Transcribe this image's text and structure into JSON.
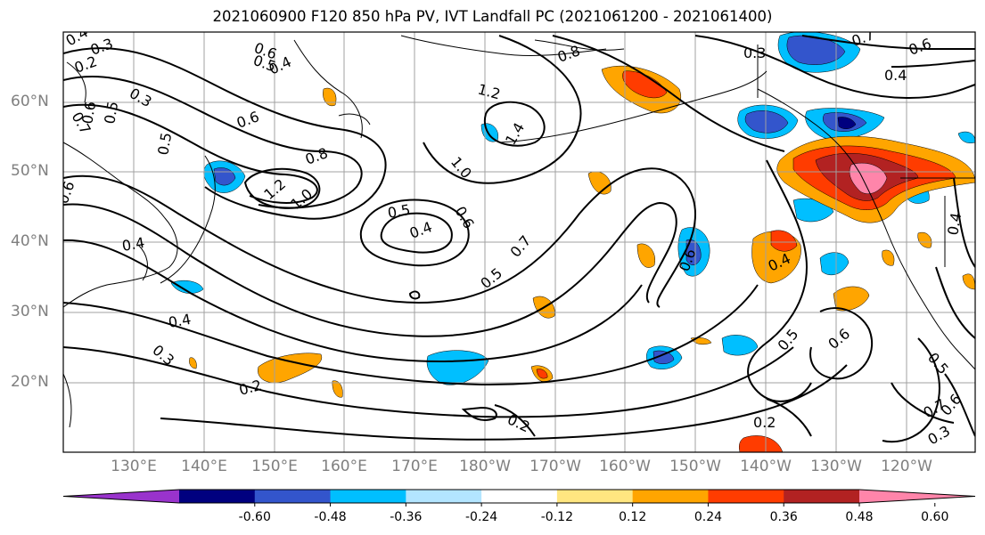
{
  "title": "2021060900 F120 850 hPa PV, IVT Landfall PC (2021061200 - 2021061400)",
  "lat_labels": [
    "60°N",
    "50°N",
    "40°N",
    "30°N",
    "20°N"
  ],
  "lon_labels": [
    "130°E",
    "140°E",
    "150°E",
    "160°E",
    "170°E",
    "180°W",
    "170°W",
    "160°W",
    "150°W",
    "140°W",
    "130°W",
    "120°W"
  ],
  "contour_labels": [
    "0.4",
    "0.3",
    "0.2",
    "0.6",
    "0.5",
    "0.4",
    "0.3",
    "0.7",
    "0.6",
    "0.5",
    "0.6",
    "0.5",
    "0.8",
    "1.2",
    "1.0",
    "1.4",
    "1.0",
    "0.5",
    "0.4",
    "0.6",
    "0.7",
    "0.6",
    "0.5",
    "0.4",
    "0.4",
    "0.3",
    "0.2",
    "0.2",
    "0.2",
    "0.4",
    "0.5",
    "0.6",
    "0.5",
    "0.7",
    "0.6",
    "0.3",
    "0.3",
    "0.4",
    "0.6",
    "0.7",
    "0.4",
    "0.8",
    "1.2",
    "0.6"
  ],
  "colorbar": {
    "colors": [
      "#9933cc",
      "#00007f",
      "#3355cc",
      "#00bfff",
      "#b3e5ff",
      "#ffffff",
      "#ffe680",
      "#ffa500",
      "#ff3c00",
      "#b22222",
      "#ff85aa"
    ],
    "tick_labels": [
      "-0.60",
      "-0.48",
      "-0.36",
      "-0.24",
      "-0.12",
      "0.12",
      "0.24",
      "0.36",
      "0.48",
      "0.60"
    ]
  }
}
